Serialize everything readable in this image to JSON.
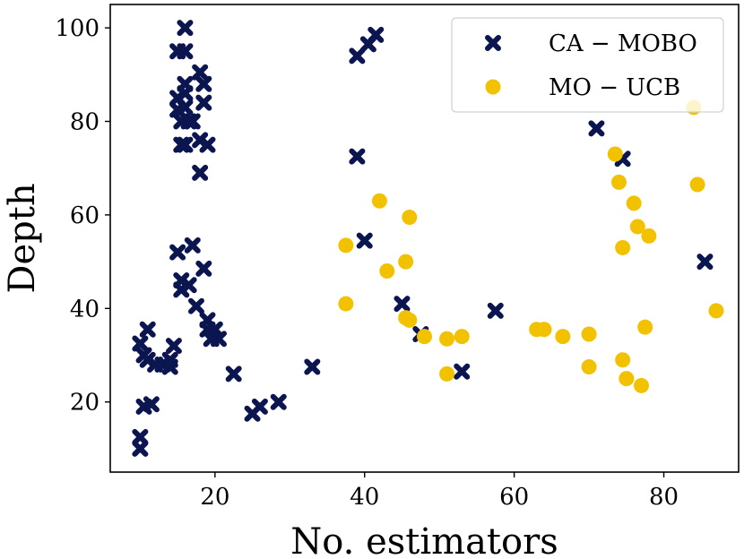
{
  "chart_data": {
    "type": "scatter",
    "xlabel": "No. estimators",
    "ylabel": "Depth",
    "xlim": [
      6,
      90
    ],
    "ylim": [
      5,
      105
    ],
    "xticks": [
      20,
      40,
      60,
      80
    ],
    "yticks": [
      20,
      40,
      60,
      80,
      100
    ],
    "grid": false,
    "legend_position": "top-right",
    "series": [
      {
        "name": "CA − MOBO",
        "marker": "x",
        "color": "#0b1650",
        "points": [
          [
            10,
            10
          ],
          [
            10,
            12.5
          ],
          [
            10,
            32.5
          ],
          [
            10.5,
            30
          ],
          [
            10.5,
            19
          ],
          [
            11,
            35.5
          ],
          [
            11,
            29
          ],
          [
            11.5,
            19.5
          ],
          [
            12,
            28
          ],
          [
            13,
            28
          ],
          [
            14,
            27.5
          ],
          [
            14,
            29
          ],
          [
            14.5,
            32
          ],
          [
            15,
            85
          ],
          [
            15,
            82.5
          ],
          [
            15,
            95
          ],
          [
            15,
            52
          ],
          [
            15.5,
            80
          ],
          [
            15.5,
            75
          ],
          [
            15.5,
            44
          ],
          [
            15.5,
            46
          ],
          [
            16,
            100
          ],
          [
            16,
            95
          ],
          [
            16,
            88
          ],
          [
            16,
            86
          ],
          [
            16,
            83
          ],
          [
            16,
            75
          ],
          [
            16.5,
            80
          ],
          [
            16.5,
            45
          ],
          [
            17,
            53.5
          ],
          [
            17,
            80
          ],
          [
            17.5,
            40.5
          ],
          [
            18,
            90.5
          ],
          [
            18,
            76
          ],
          [
            18,
            69
          ],
          [
            18.5,
            84
          ],
          [
            18.5,
            88
          ],
          [
            18.5,
            48.5
          ],
          [
            19,
            75
          ],
          [
            19,
            37.5
          ],
          [
            19,
            35.5
          ],
          [
            19.5,
            33.5
          ],
          [
            20,
            35.5
          ],
          [
            20.5,
            33.5
          ],
          [
            22.5,
            26
          ],
          [
            25,
            17.5
          ],
          [
            26,
            19
          ],
          [
            28.5,
            20
          ],
          [
            33,
            27.5
          ],
          [
            39,
            72.5
          ],
          [
            39,
            94
          ],
          [
            40,
            54.5
          ],
          [
            40.5,
            96.5
          ],
          [
            41.5,
            98.5
          ],
          [
            45,
            41
          ],
          [
            47.5,
            34.5
          ],
          [
            53,
            26.5
          ],
          [
            57.5,
            39.5
          ],
          [
            71,
            78.5
          ],
          [
            74.5,
            72
          ],
          [
            85.5,
            50
          ]
        ]
      },
      {
        "name": "MO − UCB",
        "marker": "o",
        "color": "#f2c200",
        "points": [
          [
            37.5,
            53.5
          ],
          [
            37.5,
            41
          ],
          [
            42,
            63
          ],
          [
            43,
            48
          ],
          [
            45.5,
            50
          ],
          [
            46,
            59.5
          ],
          [
            45.5,
            38
          ],
          [
            46,
            37.5
          ],
          [
            48,
            34
          ],
          [
            51,
            33.5
          ],
          [
            51,
            26
          ],
          [
            53,
            34
          ],
          [
            63,
            35.5
          ],
          [
            64,
            35.5
          ],
          [
            66.5,
            34
          ],
          [
            70,
            34.5
          ],
          [
            70,
            27.5
          ],
          [
            73.5,
            73
          ],
          [
            74,
            67
          ],
          [
            74.5,
            29
          ],
          [
            74.5,
            53
          ],
          [
            75,
            25
          ],
          [
            76,
            62.5
          ],
          [
            76.5,
            57.5
          ],
          [
            77,
            23.5
          ],
          [
            77.5,
            36
          ],
          [
            78,
            55.5
          ],
          [
            84,
            83
          ],
          [
            84.5,
            66.5
          ],
          [
            87,
            39.5
          ]
        ]
      }
    ]
  }
}
